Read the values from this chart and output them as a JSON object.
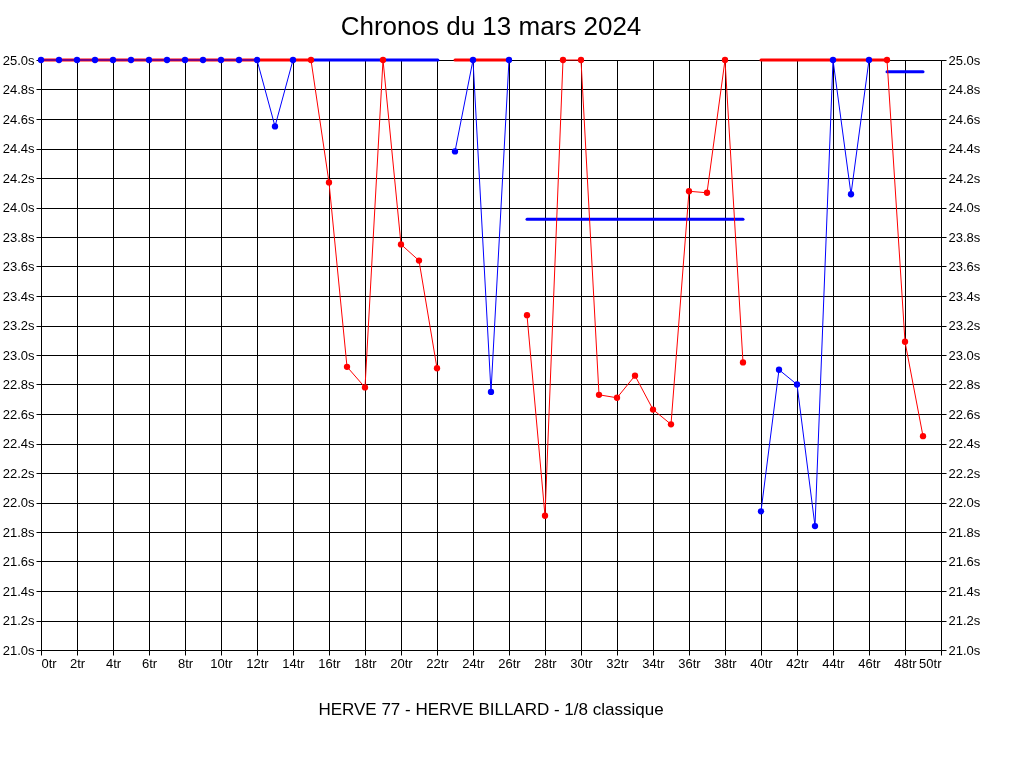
{
  "chart_data": {
    "type": "line",
    "title": "Chronos du 13 mars 2024",
    "annotations": [
      "HERVE 77 - HERVE BILLARD - 1/8 classique"
    ],
    "xlim": [
      0,
      50
    ],
    "xticks": [
      {
        "value": 0,
        "label": "0tr"
      },
      {
        "value": 2,
        "label": "2tr"
      },
      {
        "value": 4,
        "label": "4tr"
      },
      {
        "value": 6,
        "label": "6tr"
      },
      {
        "value": 8,
        "label": "8tr"
      },
      {
        "value": 10,
        "label": "10tr"
      },
      {
        "value": 12,
        "label": "12tr"
      },
      {
        "value": 14,
        "label": "14tr"
      },
      {
        "value": 16,
        "label": "16tr"
      },
      {
        "value": 18,
        "label": "18tr"
      },
      {
        "value": 20,
        "label": "20tr"
      },
      {
        "value": 22,
        "label": "22tr"
      },
      {
        "value": 24,
        "label": "24tr"
      },
      {
        "value": 26,
        "label": "26tr"
      },
      {
        "value": 28,
        "label": "28tr"
      },
      {
        "value": 30,
        "label": "30tr"
      },
      {
        "value": 32,
        "label": "32tr"
      },
      {
        "value": 34,
        "label": "34tr"
      },
      {
        "value": 36,
        "label": "36tr"
      },
      {
        "value": 38,
        "label": "38tr"
      },
      {
        "value": 40,
        "label": "40tr"
      },
      {
        "value": 42,
        "label": "42tr"
      },
      {
        "value": 44,
        "label": "44tr"
      },
      {
        "value": 46,
        "label": "46tr"
      },
      {
        "value": 48,
        "label": "48tr"
      },
      {
        "value": 50,
        "label": "50tr"
      }
    ],
    "ylim": [
      21.0,
      25.0
    ],
    "yticks": [
      {
        "value": 21.0,
        "label": "21.0s"
      },
      {
        "value": 21.2,
        "label": "21.2s"
      },
      {
        "value": 21.4,
        "label": "21.4s"
      },
      {
        "value": 21.6,
        "label": "21.6s"
      },
      {
        "value": 21.8,
        "label": "21.8s"
      },
      {
        "value": 22.0,
        "label": "22.0s"
      },
      {
        "value": 22.2,
        "label": "22.2s"
      },
      {
        "value": 22.4,
        "label": "22.4s"
      },
      {
        "value": 22.6,
        "label": "22.6s"
      },
      {
        "value": 22.8,
        "label": "22.8s"
      },
      {
        "value": 23.0,
        "label": "23.0s"
      },
      {
        "value": 23.2,
        "label": "23.2s"
      },
      {
        "value": 23.4,
        "label": "23.4s"
      },
      {
        "value": 23.6,
        "label": "23.6s"
      },
      {
        "value": 23.8,
        "label": "23.8s"
      },
      {
        "value": 24.0,
        "label": "24.0s"
      },
      {
        "value": 24.2,
        "label": "24.2s"
      },
      {
        "value": 24.4,
        "label": "24.4s"
      },
      {
        "value": 24.6,
        "label": "24.6s"
      },
      {
        "value": 24.8,
        "label": "24.8s"
      },
      {
        "value": 25.0,
        "label": "25.0s"
      }
    ],
    "y2lim": [
      21.0,
      25.0
    ],
    "y2ticks": [
      {
        "value": 21.0,
        "label": "21.0s"
      },
      {
        "value": 21.2,
        "label": "21.2s"
      },
      {
        "value": 21.4,
        "label": "21.4s"
      },
      {
        "value": 21.6,
        "label": "21.6s"
      },
      {
        "value": 21.8,
        "label": "21.8s"
      },
      {
        "value": 22.0,
        "label": "22.0s"
      },
      {
        "value": 22.2,
        "label": "22.2s"
      },
      {
        "value": 22.4,
        "label": "22.4s"
      },
      {
        "value": 22.6,
        "label": "22.6s"
      },
      {
        "value": 22.8,
        "label": "22.8s"
      },
      {
        "value": 23.0,
        "label": "23.0s"
      },
      {
        "value": 23.2,
        "label": "23.2s"
      },
      {
        "value": 23.4,
        "label": "23.4s"
      },
      {
        "value": 23.6,
        "label": "23.6s"
      },
      {
        "value": 23.8,
        "label": "23.8s"
      },
      {
        "value": 24.0,
        "label": "24.0s"
      },
      {
        "value": 24.2,
        "label": "24.2s"
      },
      {
        "value": 24.4,
        "label": "24.4s"
      },
      {
        "value": 24.6,
        "label": "24.6s"
      },
      {
        "value": 24.8,
        "label": "24.8s"
      },
      {
        "value": 25.0,
        "label": "25.0s"
      }
    ],
    "grid": true,
    "marker": "circle",
    "legend": false,
    "series": [
      {
        "color": "#ff0000",
        "x": [
          0,
          15
        ],
        "values": [
          25.0,
          25.0
        ],
        "marker": "none"
      },
      {
        "color": "#0000ff",
        "x": [
          15,
          22.05
        ],
        "values": [
          25.0,
          25.0
        ],
        "marker": "none"
      },
      {
        "color": "#ff0000",
        "x": [
          23,
          26
        ],
        "values": [
          25.0,
          25.0
        ],
        "marker": "none"
      },
      {
        "color": "#0000ff",
        "x": [
          27,
          39
        ],
        "values": [
          23.92,
          23.92
        ],
        "marker": "none"
      },
      {
        "color": "#ff0000",
        "x": [
          40,
          47
        ],
        "values": [
          25.0,
          25.0
        ],
        "marker": "none"
      },
      {
        "color": "#0000ff",
        "x": [
          47,
          49
        ],
        "values": [
          24.92,
          24.92
        ],
        "marker": "none"
      },
      {
        "color": "#0000ff",
        "x": [
          0,
          1,
          2,
          3,
          4,
          5,
          6,
          7,
          8,
          9,
          10,
          11,
          12,
          13,
          14
        ],
        "values": [
          25.0,
          25.0,
          25.0,
          25.0,
          25.0,
          25.0,
          25.0,
          25.0,
          25.0,
          25.0,
          25.0,
          25.0,
          25.0,
          24.55,
          25.0
        ]
      },
      {
        "color": "#ff0000",
        "x": [
          15,
          16,
          17,
          18,
          19,
          20,
          21,
          22
        ],
        "values": [
          25.0,
          24.17,
          22.92,
          22.78,
          25.0,
          23.75,
          23.64,
          22.91
        ]
      },
      {
        "color": "#0000ff",
        "x": [
          23,
          24,
          25,
          26
        ],
        "values": [
          24.38,
          25.0,
          22.75,
          25.0
        ]
      },
      {
        "color": "#ff0000",
        "x": [
          27,
          28,
          29,
          30,
          31,
          32,
          33,
          34,
          35,
          36,
          37,
          38,
          39
        ],
        "values": [
          23.27,
          21.91,
          25.0,
          25.0,
          22.73,
          22.71,
          22.86,
          22.63,
          22.53,
          24.11,
          24.1,
          25.0,
          22.95
        ]
      },
      {
        "color": "#0000ff",
        "x": [
          40,
          41,
          42,
          43,
          44,
          45,
          46
        ],
        "values": [
          21.94,
          22.9,
          22.8,
          21.84,
          25.0,
          24.09,
          25.0
        ]
      },
      {
        "color": "#ff0000",
        "x": [
          47,
          48,
          49
        ],
        "values": [
          25.0,
          23.09,
          22.45
        ]
      }
    ]
  }
}
